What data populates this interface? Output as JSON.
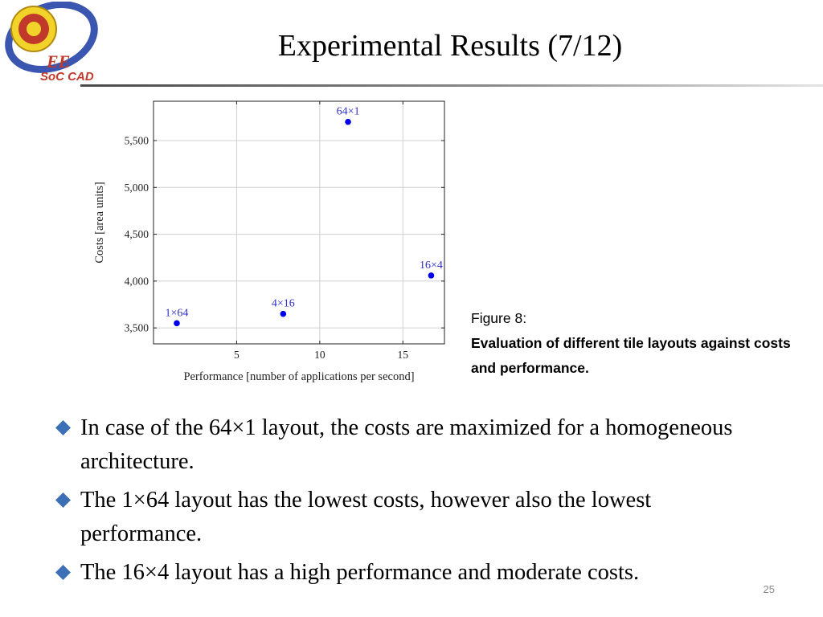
{
  "slide": {
    "title": "Experimental Results (7/12)",
    "number": "25"
  },
  "logo": {
    "text_main": "EE",
    "text_sub": "SoC CAD",
    "colors": {
      "swoosh": "#3a56b0",
      "text_main": "#c0392b",
      "emblem": "#f2d32a"
    }
  },
  "chart_data": {
    "type": "scatter",
    "xlabel": "Performance [number of applications per second]",
    "ylabel": "Costs [area units]",
    "xlim": [
      0,
      17.5
    ],
    "ylim": [
      3330,
      5920
    ],
    "xticks": [
      5,
      10,
      15
    ],
    "xtick_labels": [
      "5",
      "10",
      "15"
    ],
    "yticks": [
      3500,
      4000,
      4500,
      5000,
      5500
    ],
    "ytick_labels": [
      "3,500",
      "4,000",
      "4,500",
      "5,000",
      "5,500"
    ],
    "grid": true,
    "marker_color": "#0000ee",
    "label_color": "#3030c8",
    "points": [
      {
        "label": "64×1",
        "x": 11.7,
        "y": 5700
      },
      {
        "label": "16×4",
        "x": 16.7,
        "y": 4060
      },
      {
        "label": "4×16",
        "x": 7.8,
        "y": 3650
      },
      {
        "label": "1×64",
        "x": 1.4,
        "y": 3550
      }
    ]
  },
  "caption": {
    "figure_label": "Figure 8:",
    "text": "Evaluation of different tile layouts against costs and performance."
  },
  "bullets": [
    {
      "text": "In case of the 64×1 layout, the costs are maximized for a homogeneous architecture."
    },
    {
      "text": "The 1×64 layout has the lowest costs, however also the lowest performance."
    },
    {
      "text": "The 16×4 layout has a high performance and moderate costs."
    }
  ],
  "colors": {
    "bullet": "#3d6fb6",
    "rule": "#6a6a6a"
  }
}
